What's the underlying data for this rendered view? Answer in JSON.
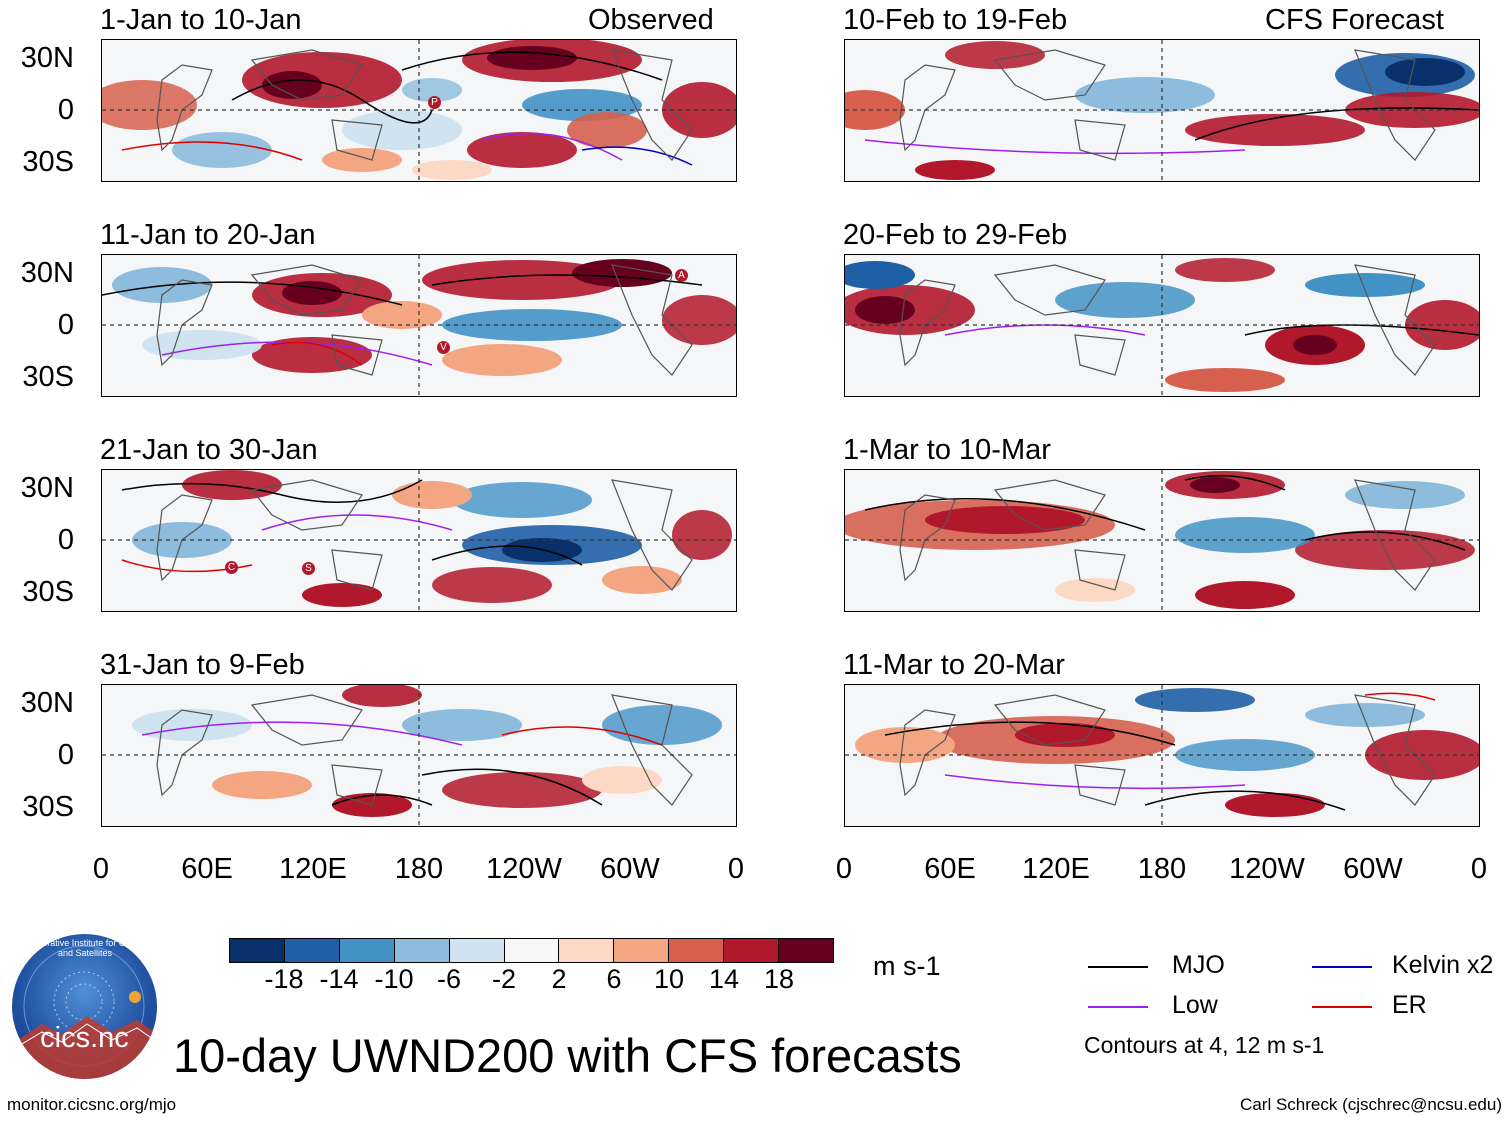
{
  "figure_title": "10-day UWND200 with CFS forecasts",
  "column_labels": {
    "left": "Observed",
    "right": "CFS Forecast"
  },
  "panels_left": [
    {
      "title": "1-Jan to 10-Jan"
    },
    {
      "title": "11-Jan to 20-Jan"
    },
    {
      "title": "21-Jan to 30-Jan"
    },
    {
      "title": "31-Jan to 9-Feb"
    }
  ],
  "panels_right": [
    {
      "title": "10-Feb to 19-Feb"
    },
    {
      "title": "20-Feb to 29-Feb"
    },
    {
      "title": "1-Mar to 10-Mar"
    },
    {
      "title": "11-Mar to 20-Mar"
    }
  ],
  "lat_labels": [
    "30N",
    "0",
    "30S"
  ],
  "lon_labels": [
    "0",
    "60E",
    "120E",
    "180",
    "120W",
    "60W",
    "0"
  ],
  "colorbar": {
    "colors": [
      "#08306b",
      "#1f5fa5",
      "#4292c6",
      "#8dbcdc",
      "#cfe3f0",
      "#f7f7f7",
      "#fcd9c4",
      "#f4a582",
      "#d6604d",
      "#b2182b",
      "#67001f"
    ],
    "ticks": [
      "-18",
      "-14",
      "-10",
      "-6",
      "-2",
      "2",
      "6",
      "10",
      "14",
      "18"
    ],
    "units": "m s-1"
  },
  "legend": [
    {
      "label": "MJO",
      "color": "#000000"
    },
    {
      "label": "Kelvin x2",
      "color": "#0000cc"
    },
    {
      "label": "Low",
      "color": "#a020f0"
    },
    {
      "label": "ER",
      "color": "#e00000"
    }
  ],
  "contour_note": "Contours at 4, 12 m s-1",
  "logo": {
    "text": "cics.nc",
    "ring_text": "Cooperative Institute for Climate and Satellites"
  },
  "footer": {
    "left": "monitor.cicsnc.org/mjo",
    "right": "Carl Schreck (cjschrec@ncsu.edu)"
  },
  "storm_markers": [
    {
      "panel": "L1",
      "letter": "P"
    },
    {
      "panel": "L2",
      "letter": "A"
    },
    {
      "panel": "L2",
      "letter": "V"
    },
    {
      "panel": "L3",
      "letter": "C"
    },
    {
      "panel": "L3",
      "letter": "S"
    }
  ]
}
